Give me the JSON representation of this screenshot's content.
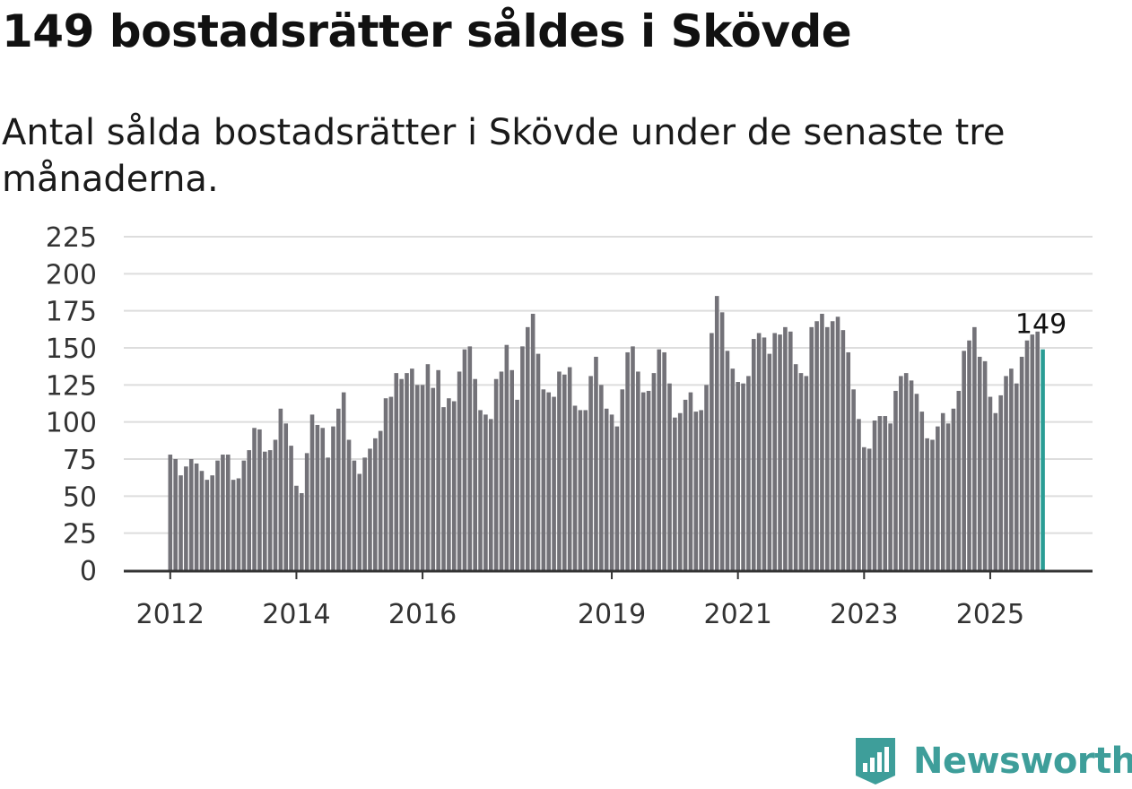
{
  "header": {
    "title": "149 bostadsrätter såldes i Skövde",
    "subtitle": "Antal sålda bostadsrätter i Skövde under de senaste tre månaderna."
  },
  "brand": {
    "name": "Newsworthy",
    "icon": "newsworthy-logo-icon",
    "color": "#3e9e9a"
  },
  "colors": {
    "bar": "#737278",
    "highlight": "#2a9d95",
    "grid": "#dddddd",
    "axis": "#333333"
  },
  "chart_data": {
    "type": "bar",
    "title": "149 bostadsrätter såldes i Skövde",
    "xlabel": "",
    "ylabel": "",
    "ylim": [
      0,
      225
    ],
    "yticks": [
      0,
      25,
      50,
      75,
      100,
      125,
      150,
      175,
      200,
      225
    ],
    "xtick_labels": [
      {
        "label": "2012",
        "index": 0
      },
      {
        "label": "2014",
        "index": 24
      },
      {
        "label": "2016",
        "index": 48
      },
      {
        "label": "2019",
        "index": 84
      },
      {
        "label": "2021",
        "index": 108
      },
      {
        "label": "2023",
        "index": 132
      },
      {
        "label": "2025",
        "index": 156
      }
    ],
    "start_month": "2012-01",
    "last_value_label": "149",
    "grid": true,
    "values": [
      78,
      75,
      64,
      70,
      75,
      72,
      67,
      61,
      64,
      74,
      78,
      78,
      61,
      62,
      74,
      81,
      96,
      95,
      80,
      81,
      88,
      109,
      99,
      84,
      57,
      52,
      79,
      105,
      98,
      96,
      76,
      97,
      109,
      120,
      88,
      74,
      65,
      76,
      82,
      89,
      94,
      116,
      117,
      133,
      129,
      133,
      136,
      125,
      125,
      139,
      123,
      135,
      110,
      116,
      114,
      134,
      149,
      151,
      129,
      108,
      105,
      102,
      129,
      134,
      152,
      135,
      115,
      151,
      164,
      173,
      146,
      122,
      120,
      117,
      134,
      132,
      137,
      111,
      108,
      108,
      131,
      144,
      125,
      109,
      105,
      97,
      122,
      147,
      151,
      134,
      120,
      121,
      133,
      149,
      147,
      126,
      103,
      106,
      115,
      120,
      107,
      108,
      125,
      160,
      185,
      174,
      148,
      136,
      127,
      126,
      131,
      156,
      160,
      157,
      146,
      160,
      159,
      164,
      161,
      139,
      133,
      131,
      164,
      168,
      173,
      164,
      168,
      171,
      162,
      147,
      122,
      102,
      83,
      82,
      101,
      104,
      104,
      99,
      121,
      131,
      133,
      128,
      119,
      107,
      89,
      88,
      97,
      106,
      99,
      109,
      121,
      148,
      155,
      164,
      144,
      141,
      117,
      106,
      118,
      131,
      136,
      126,
      144,
      155,
      159,
      161,
      149
    ]
  }
}
